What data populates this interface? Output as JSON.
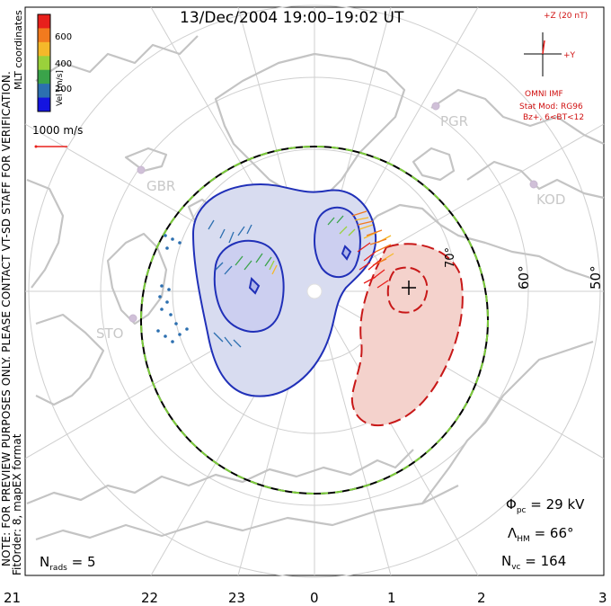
{
  "title": "13/Dec/2004  19:00–19:02  UT",
  "colorbar": {
    "ticks": [
      "600",
      "400",
      "200"
    ],
    "label": "Vel [m/s]",
    "colors": [
      "#e8201c",
      "#f27a1e",
      "#f5b82a",
      "#9ad13b",
      "#3aa34a",
      "#2c6fb0",
      "#1414e0"
    ]
  },
  "coord_label": "MLT coordinates",
  "scale_label": "1000 m/s",
  "note": {
    "line1": "NOTE: FOR PREVIEW PURPOSES ONLY. PLEASE CONTACT VT-SD STAFF FOR VERIFICATION.",
    "line2": "FitOrder: 8, mapEX format"
  },
  "imf": {
    "z_label": "+Z (20 nT)",
    "y_label": "+Y",
    "omni": "OMNI IMF",
    "model": "Stat Mod: RG96",
    "condition": "Bz+, 6<BT<12"
  },
  "stations": [
    "GBR",
    "PGR",
    "KOD",
    "STO"
  ],
  "latitudes": [
    "70°",
    "60°",
    "50°"
  ],
  "mlt_ticks": [
    "21",
    "22",
    "23",
    "0",
    "1",
    "2",
    "3"
  ],
  "stats": {
    "phi_sym": "Φ",
    "phi_sub": "pc",
    "phi_value": " = 29 kV",
    "lambda_sym": "Λ",
    "lambda_sub": "HM",
    "lambda_value": " = 66°",
    "nvc_sym": "N",
    "nvc_sub": "vc",
    "nvc_value": " = 164",
    "nrads_sym": "N",
    "nrads_sub": "rads",
    "nrads_value": " = 5"
  },
  "colors": {
    "dusk_cell": "#2030b8",
    "dusk_fill": "#d8dcf0",
    "dawn_cell": "#c81818",
    "dawn_fill": "#f4d2cc",
    "land": "#c4c4c4",
    "grid": "#cccccc",
    "boundary_green": "#7ccc3a"
  }
}
